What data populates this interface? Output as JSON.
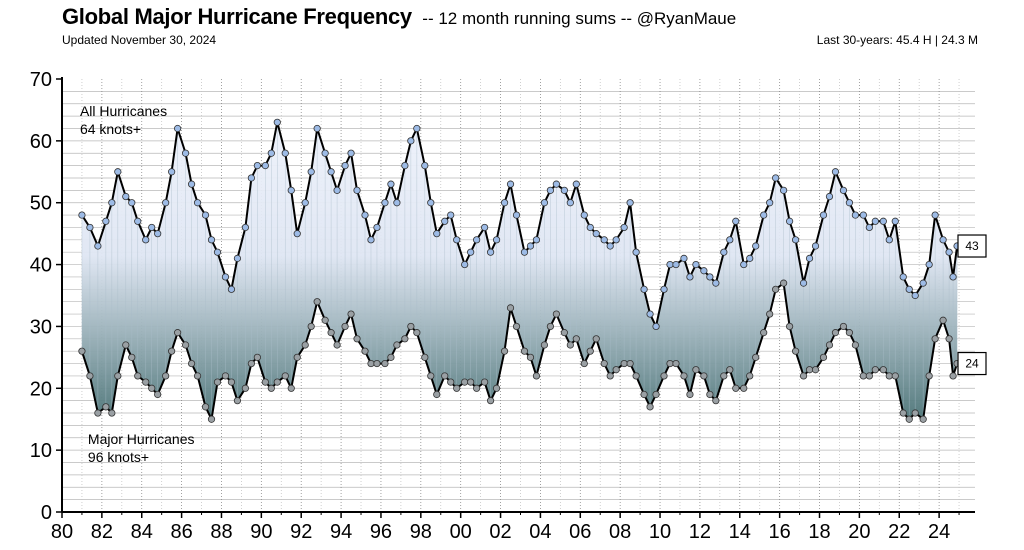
{
  "header": {
    "title": "Global Major Hurricane Frequency",
    "subtitle": "-- 12 month running sums -- @RyanMaue",
    "updated": "Updated November 30, 2024",
    "last30": "Last 30-years:  45.4 H  |  24.3 M"
  },
  "chart_data": {
    "type": "line",
    "title": "Global Major Hurricane Frequency",
    "subtitle": "-- 12 month running sums -- @RyanMaue",
    "xlabel": "",
    "ylabel": "",
    "xlim": [
      1980,
      2025.8
    ],
    "ylim": [
      0,
      70
    ],
    "yticks": [
      0,
      10,
      20,
      30,
      40,
      50,
      60,
      70
    ],
    "xtick_labels": [
      "80",
      "82",
      "84",
      "86",
      "88",
      "90",
      "92",
      "94",
      "96",
      "98",
      "00",
      "02",
      "04",
      "06",
      "08",
      "10",
      "12",
      "14",
      "16",
      "18",
      "20",
      "22",
      "24"
    ],
    "grid": true,
    "fill_between_series": true,
    "series": [
      {
        "name": "All Hurricanes 64 knots+",
        "color": "#000000",
        "marker_color": "#9dbbe6",
        "end_value_label": "43",
        "points": [
          [
            1981.0,
            48
          ],
          [
            1981.4,
            46
          ],
          [
            1981.8,
            43
          ],
          [
            1982.2,
            47
          ],
          [
            1982.5,
            50
          ],
          [
            1982.8,
            55
          ],
          [
            1983.2,
            51
          ],
          [
            1983.5,
            50
          ],
          [
            1983.8,
            47
          ],
          [
            1984.2,
            44
          ],
          [
            1984.5,
            46
          ],
          [
            1984.8,
            45
          ],
          [
            1985.2,
            50
          ],
          [
            1985.5,
            55
          ],
          [
            1985.8,
            62
          ],
          [
            1986.2,
            58
          ],
          [
            1986.5,
            53
          ],
          [
            1986.8,
            50
          ],
          [
            1987.2,
            48
          ],
          [
            1987.5,
            44
          ],
          [
            1987.8,
            42
          ],
          [
            1988.2,
            38
          ],
          [
            1988.5,
            36
          ],
          [
            1988.8,
            41
          ],
          [
            1989.2,
            46
          ],
          [
            1989.5,
            54
          ],
          [
            1989.8,
            56
          ],
          [
            1990.2,
            56
          ],
          [
            1990.5,
            58
          ],
          [
            1990.8,
            63
          ],
          [
            1991.2,
            58
          ],
          [
            1991.5,
            52
          ],
          [
            1991.8,
            45
          ],
          [
            1992.2,
            50
          ],
          [
            1992.5,
            55
          ],
          [
            1992.8,
            62
          ],
          [
            1993.2,
            58
          ],
          [
            1993.5,
            55
          ],
          [
            1993.8,
            52
          ],
          [
            1994.2,
            56
          ],
          [
            1994.5,
            58
          ],
          [
            1994.8,
            52
          ],
          [
            1995.2,
            48
          ],
          [
            1995.5,
            44
          ],
          [
            1995.8,
            46
          ],
          [
            1996.2,
            50
          ],
          [
            1996.5,
            53
          ],
          [
            1996.8,
            50
          ],
          [
            1997.2,
            56
          ],
          [
            1997.5,
            60
          ],
          [
            1997.8,
            62
          ],
          [
            1998.2,
            56
          ],
          [
            1998.5,
            50
          ],
          [
            1998.8,
            45
          ],
          [
            1999.2,
            47
          ],
          [
            1999.5,
            48
          ],
          [
            1999.8,
            44
          ],
          [
            2000.2,
            40
          ],
          [
            2000.5,
            42
          ],
          [
            2000.8,
            44
          ],
          [
            2001.2,
            46
          ],
          [
            2001.5,
            42
          ],
          [
            2001.8,
            44
          ],
          [
            2002.2,
            50
          ],
          [
            2002.5,
            53
          ],
          [
            2002.8,
            48
          ],
          [
            2003.2,
            42
          ],
          [
            2003.5,
            43
          ],
          [
            2003.8,
            44
          ],
          [
            2004.2,
            50
          ],
          [
            2004.5,
            52
          ],
          [
            2004.8,
            53
          ],
          [
            2005.2,
            52
          ],
          [
            2005.5,
            50
          ],
          [
            2005.8,
            53
          ],
          [
            2006.2,
            48
          ],
          [
            2006.5,
            46
          ],
          [
            2006.8,
            45
          ],
          [
            2007.2,
            44
          ],
          [
            2007.5,
            43
          ],
          [
            2007.8,
            44
          ],
          [
            2008.2,
            46
          ],
          [
            2008.5,
            50
          ],
          [
            2008.8,
            42
          ],
          [
            2009.2,
            36
          ],
          [
            2009.5,
            32
          ],
          [
            2009.8,
            30
          ],
          [
            2010.2,
            36
          ],
          [
            2010.5,
            40
          ],
          [
            2010.8,
            40
          ],
          [
            2011.2,
            41
          ],
          [
            2011.5,
            38
          ],
          [
            2011.8,
            40
          ],
          [
            2012.2,
            39
          ],
          [
            2012.5,
            38
          ],
          [
            2012.8,
            37
          ],
          [
            2013.2,
            42
          ],
          [
            2013.5,
            44
          ],
          [
            2013.8,
            47
          ],
          [
            2014.2,
            40
          ],
          [
            2014.5,
            41
          ],
          [
            2014.8,
            43
          ],
          [
            2015.2,
            48
          ],
          [
            2015.5,
            50
          ],
          [
            2015.8,
            54
          ],
          [
            2016.2,
            52
          ],
          [
            2016.5,
            47
          ],
          [
            2016.8,
            44
          ],
          [
            2017.2,
            37
          ],
          [
            2017.5,
            41
          ],
          [
            2017.8,
            43
          ],
          [
            2018.2,
            48
          ],
          [
            2018.5,
            51
          ],
          [
            2018.8,
            55
          ],
          [
            2019.2,
            52
          ],
          [
            2019.5,
            50
          ],
          [
            2019.8,
            48
          ],
          [
            2020.2,
            48
          ],
          [
            2020.5,
            46
          ],
          [
            2020.8,
            47
          ],
          [
            2021.2,
            47
          ],
          [
            2021.5,
            44
          ],
          [
            2021.8,
            47
          ],
          [
            2022.2,
            38
          ],
          [
            2022.5,
            36
          ],
          [
            2022.8,
            35
          ],
          [
            2023.2,
            37
          ],
          [
            2023.5,
            40
          ],
          [
            2023.8,
            48
          ],
          [
            2024.2,
            44
          ],
          [
            2024.5,
            42
          ],
          [
            2024.7,
            38
          ],
          [
            2024.9,
            43
          ]
        ]
      },
      {
        "name": "Major Hurricanes 96 knots+",
        "color": "#000000",
        "marker_color": "#9aa0a4",
        "end_value_label": "24",
        "points": [
          [
            1981.0,
            26
          ],
          [
            1981.4,
            22
          ],
          [
            1981.8,
            16
          ],
          [
            1982.2,
            17
          ],
          [
            1982.5,
            16
          ],
          [
            1982.8,
            22
          ],
          [
            1983.2,
            27
          ],
          [
            1983.5,
            25
          ],
          [
            1983.8,
            22
          ],
          [
            1984.2,
            21
          ],
          [
            1984.5,
            20
          ],
          [
            1984.8,
            19
          ],
          [
            1985.2,
            22
          ],
          [
            1985.5,
            26
          ],
          [
            1985.8,
            29
          ],
          [
            1986.2,
            27
          ],
          [
            1986.5,
            24
          ],
          [
            1986.8,
            22
          ],
          [
            1987.2,
            17
          ],
          [
            1987.5,
            15
          ],
          [
            1987.8,
            21
          ],
          [
            1988.2,
            22
          ],
          [
            1988.5,
            21
          ],
          [
            1988.8,
            18
          ],
          [
            1989.2,
            20
          ],
          [
            1989.5,
            24
          ],
          [
            1989.8,
            25
          ],
          [
            1990.2,
            21
          ],
          [
            1990.5,
            20
          ],
          [
            1990.8,
            21
          ],
          [
            1991.2,
            22
          ],
          [
            1991.5,
            20
          ],
          [
            1991.8,
            25
          ],
          [
            1992.2,
            27
          ],
          [
            1992.5,
            30
          ],
          [
            1992.8,
            34
          ],
          [
            1993.2,
            31
          ],
          [
            1993.5,
            29
          ],
          [
            1993.8,
            27
          ],
          [
            1994.2,
            30
          ],
          [
            1994.5,
            32
          ],
          [
            1994.8,
            28
          ],
          [
            1995.2,
            26
          ],
          [
            1995.5,
            24
          ],
          [
            1995.8,
            24
          ],
          [
            1996.2,
            24
          ],
          [
            1996.5,
            25
          ],
          [
            1996.8,
            27
          ],
          [
            1997.2,
            28
          ],
          [
            1997.5,
            30
          ],
          [
            1997.8,
            29
          ],
          [
            1998.2,
            25
          ],
          [
            1998.5,
            22
          ],
          [
            1998.8,
            19
          ],
          [
            1999.2,
            22
          ],
          [
            1999.5,
            21
          ],
          [
            1999.8,
            20
          ],
          [
            2000.2,
            21
          ],
          [
            2000.5,
            21
          ],
          [
            2000.8,
            20
          ],
          [
            2001.2,
            21
          ],
          [
            2001.5,
            18
          ],
          [
            2001.8,
            20
          ],
          [
            2002.2,
            26
          ],
          [
            2002.5,
            33
          ],
          [
            2002.8,
            30
          ],
          [
            2003.2,
            26
          ],
          [
            2003.5,
            25
          ],
          [
            2003.8,
            22
          ],
          [
            2004.2,
            27
          ],
          [
            2004.5,
            30
          ],
          [
            2004.8,
            32
          ],
          [
            2005.2,
            29
          ],
          [
            2005.5,
            27
          ],
          [
            2005.8,
            28
          ],
          [
            2006.2,
            24
          ],
          [
            2006.5,
            26
          ],
          [
            2006.8,
            28
          ],
          [
            2007.2,
            24
          ],
          [
            2007.5,
            22
          ],
          [
            2007.8,
            23
          ],
          [
            2008.2,
            24
          ],
          [
            2008.5,
            24
          ],
          [
            2008.8,
            22
          ],
          [
            2009.2,
            19
          ],
          [
            2009.5,
            17
          ],
          [
            2009.8,
            19
          ],
          [
            2010.2,
            22
          ],
          [
            2010.5,
            24
          ],
          [
            2010.8,
            24
          ],
          [
            2011.2,
            22
          ],
          [
            2011.5,
            19
          ],
          [
            2011.8,
            23
          ],
          [
            2012.2,
            22
          ],
          [
            2012.5,
            19
          ],
          [
            2012.8,
            18
          ],
          [
            2013.2,
            22
          ],
          [
            2013.5,
            23
          ],
          [
            2013.8,
            20
          ],
          [
            2014.2,
            20
          ],
          [
            2014.5,
            22
          ],
          [
            2014.8,
            25
          ],
          [
            2015.2,
            29
          ],
          [
            2015.5,
            32
          ],
          [
            2015.8,
            36
          ],
          [
            2016.2,
            37
          ],
          [
            2016.5,
            30
          ],
          [
            2016.8,
            26
          ],
          [
            2017.2,
            22
          ],
          [
            2017.5,
            23
          ],
          [
            2017.8,
            23
          ],
          [
            2018.2,
            25
          ],
          [
            2018.5,
            27
          ],
          [
            2018.8,
            29
          ],
          [
            2019.2,
            30
          ],
          [
            2019.5,
            29
          ],
          [
            2019.8,
            27
          ],
          [
            2020.2,
            22
          ],
          [
            2020.5,
            22
          ],
          [
            2020.8,
            23
          ],
          [
            2021.2,
            23
          ],
          [
            2021.5,
            22
          ],
          [
            2021.8,
            22
          ],
          [
            2022.2,
            16
          ],
          [
            2022.5,
            15
          ],
          [
            2022.8,
            16
          ],
          [
            2023.2,
            15
          ],
          [
            2023.5,
            22
          ],
          [
            2023.8,
            28
          ],
          [
            2024.2,
            31
          ],
          [
            2024.5,
            28
          ],
          [
            2024.7,
            22
          ],
          [
            2024.9,
            24
          ]
        ]
      }
    ],
    "annotations": [
      {
        "text_line1": "All Hurricanes",
        "text_line2": "64 knots+",
        "x": 1980.9,
        "y": 64
      },
      {
        "text_line1": "Major Hurricanes",
        "text_line2": "96 knots+",
        "x": 1981.3,
        "y": 11
      }
    ]
  }
}
